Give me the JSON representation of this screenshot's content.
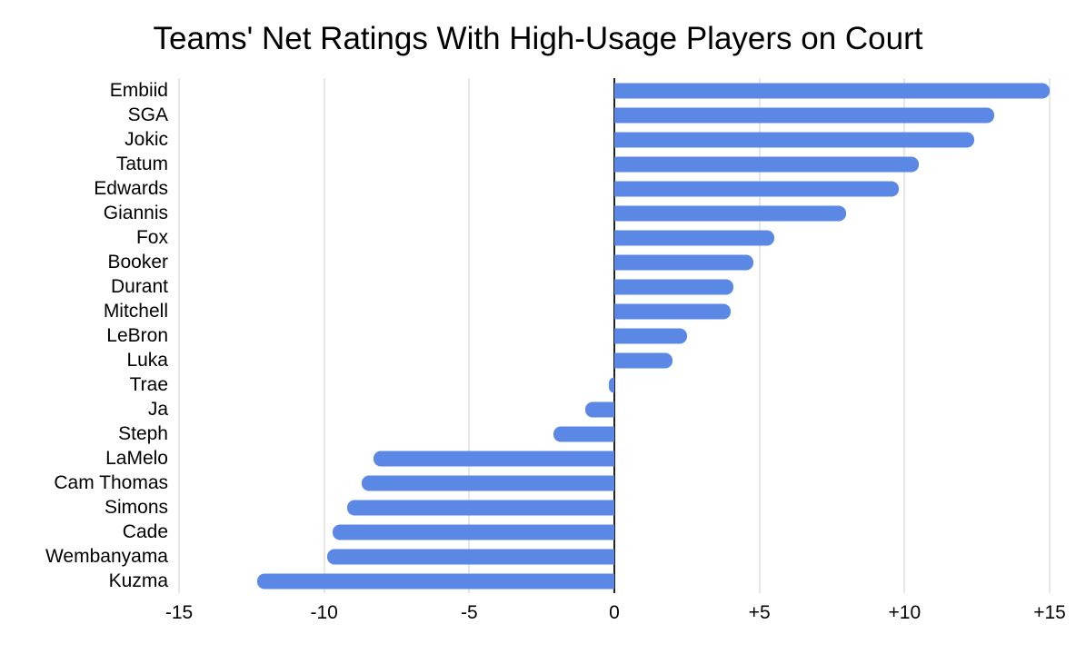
{
  "chart_data": {
    "type": "bar",
    "orientation": "horizontal",
    "title": "Teams' Net Ratings With High-Usage Players on Court",
    "categories": [
      "Embiid",
      "SGA",
      "Jokic",
      "Tatum",
      "Edwards",
      "Giannis",
      "Fox",
      "Booker",
      "Durant",
      "Mitchell",
      "LeBron",
      "Luka",
      "Trae",
      "Ja",
      "Steph",
      "LaMelo",
      "Cam Thomas",
      "Simons",
      "Cade",
      "Wembanyama",
      "Kuzma"
    ],
    "values": [
      15.0,
      13.1,
      12.4,
      10.5,
      9.8,
      8.0,
      5.5,
      4.8,
      4.1,
      4.0,
      2.5,
      2.0,
      -0.2,
      -1.0,
      -2.1,
      -8.3,
      -8.7,
      -9.2,
      -9.7,
      -9.9,
      -12.3
    ],
    "xlabel": "",
    "ylabel": "",
    "xlim": [
      -15,
      15
    ],
    "x_ticks": [
      {
        "value": -15,
        "label": "-15"
      },
      {
        "value": -10,
        "label": "-10"
      },
      {
        "value": -5,
        "label": "-5"
      },
      {
        "value": 0,
        "label": "0"
      },
      {
        "value": 5,
        "label": "+5"
      },
      {
        "value": 10,
        "label": "+10"
      },
      {
        "value": 15,
        "label": "+15"
      }
    ],
    "grid": true,
    "legend": "none",
    "bar_color": "#5b87e5",
    "gridline_color": "#cccccc",
    "zero_line_color": "#222222",
    "background": "#ffffff"
  }
}
